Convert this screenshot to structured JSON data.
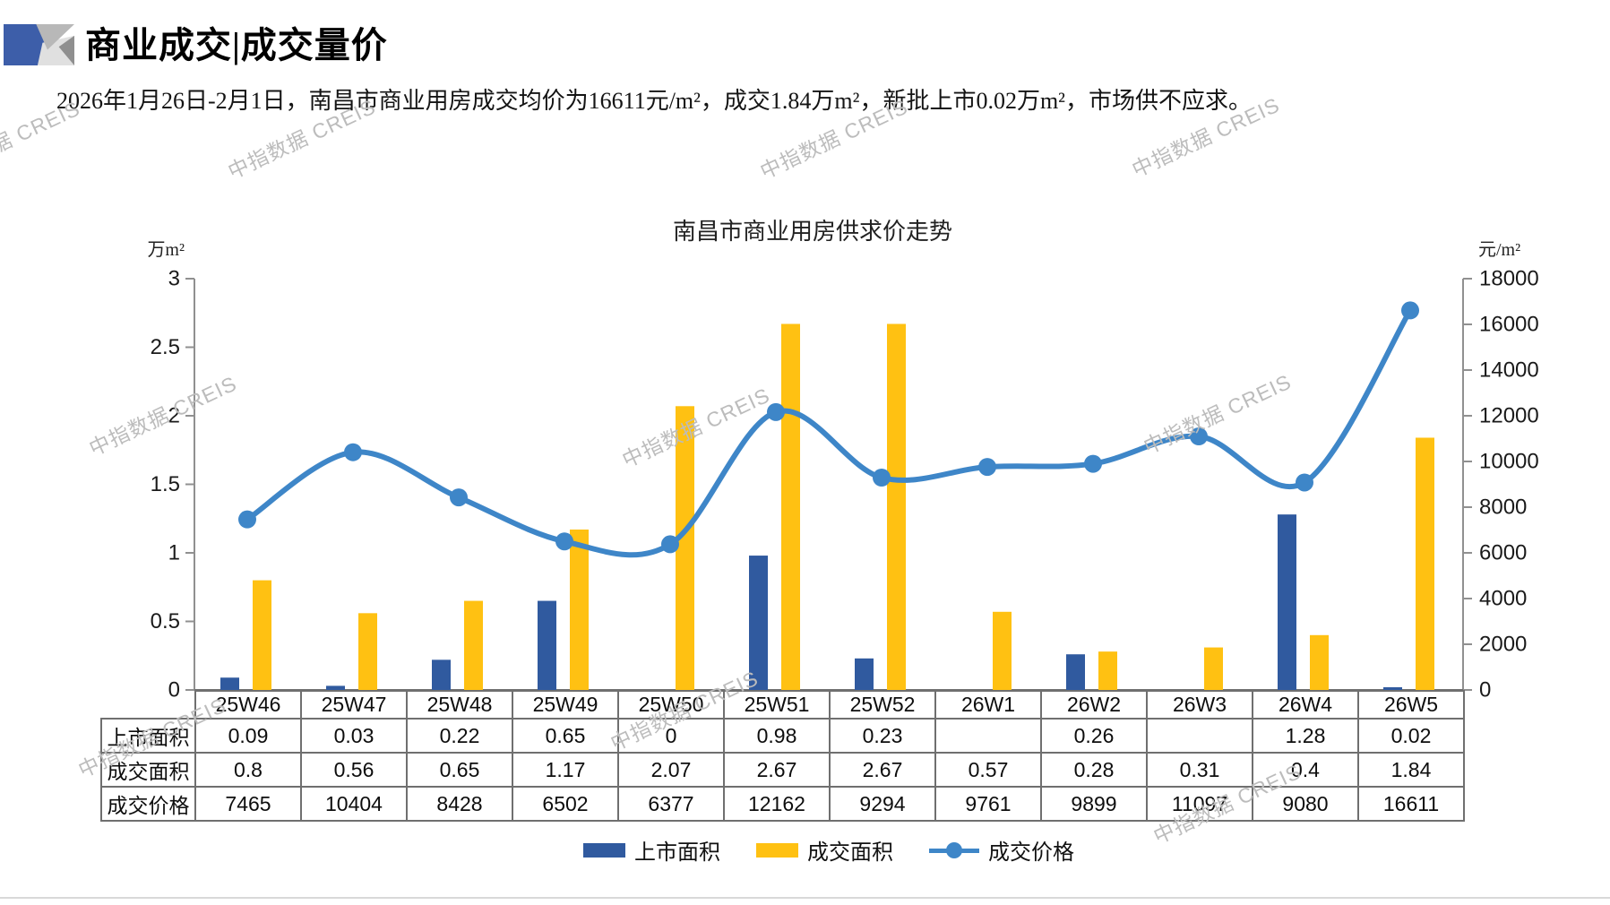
{
  "header": {
    "title": "商业成交|成交量价"
  },
  "summary": "2026年1月26日-2月1日，南昌市商业用房成交均价为16611元/m²，成交1.84万m²，新批上市0.02万m²，市场供不应求。",
  "watermark": {
    "text": "中指数据 CREIS",
    "color": "#BCBCBC"
  },
  "colors": {
    "bar_blue": "#305A9F",
    "bar_yellow": "#FFC112",
    "line_blue": "#3E86C8",
    "axis_gray": "#909090",
    "table_border": "#6F6F6F"
  },
  "chart_data": {
    "type": "bar",
    "title": "南昌市商业用房供求价走势",
    "categories": [
      "25W46",
      "25W47",
      "25W48",
      "25W49",
      "25W50",
      "25W51",
      "25W52",
      "26W1",
      "26W2",
      "26W3",
      "26W4",
      "26W5"
    ],
    "series": [
      {
        "name": "上市面积",
        "type": "bar",
        "axis": "left",
        "color": "#305A9F",
        "values": [
          0.09,
          0.03,
          0.22,
          0.65,
          0,
          0.98,
          0.23,
          null,
          0.26,
          null,
          1.28,
          0.02
        ]
      },
      {
        "name": "成交面积",
        "type": "bar",
        "axis": "left",
        "color": "#FFC112",
        "values": [
          0.8,
          0.56,
          0.65,
          1.17,
          2.07,
          2.67,
          2.67,
          0.57,
          0.28,
          0.31,
          0.4,
          1.84
        ]
      },
      {
        "name": "成交价格",
        "type": "line",
        "axis": "right",
        "color": "#3E86C8",
        "values": [
          7465,
          10404,
          8428,
          6502,
          6377,
          12162,
          9294,
          9761,
          9899,
          11097,
          9080,
          16611
        ]
      }
    ],
    "left_axis": {
      "unit": "万m²",
      "min": 0,
      "max": 3,
      "ticks": [
        "3",
        "2.5",
        "2",
        "1.5",
        "1",
        "0.5",
        "0"
      ]
    },
    "right_axis": {
      "unit": "元/m²",
      "min": 0,
      "max": 18000,
      "ticks": [
        "18000",
        "16000",
        "14000",
        "12000",
        "10000",
        "8000",
        "6000",
        "4000",
        "2000",
        "0"
      ]
    },
    "grid": false,
    "legend_position": "bottom"
  },
  "table": {
    "rows": [
      {
        "label": "上市面积",
        "values": [
          "0.09",
          "0.03",
          "0.22",
          "0.65",
          "0",
          "0.98",
          "0.23",
          "",
          "0.26",
          "",
          "1.28",
          "0.02"
        ]
      },
      {
        "label": "成交面积",
        "values": [
          "0.8",
          "0.56",
          "0.65",
          "1.17",
          "2.07",
          "2.67",
          "2.67",
          "0.57",
          "0.28",
          "0.31",
          "0.4",
          "1.84"
        ]
      },
      {
        "label": "成交价格",
        "values": [
          "7465",
          "10404",
          "8428",
          "6502",
          "6377",
          "12162",
          "9294",
          "9761",
          "9899",
          "11097",
          "9080",
          "16611"
        ]
      }
    ]
  }
}
